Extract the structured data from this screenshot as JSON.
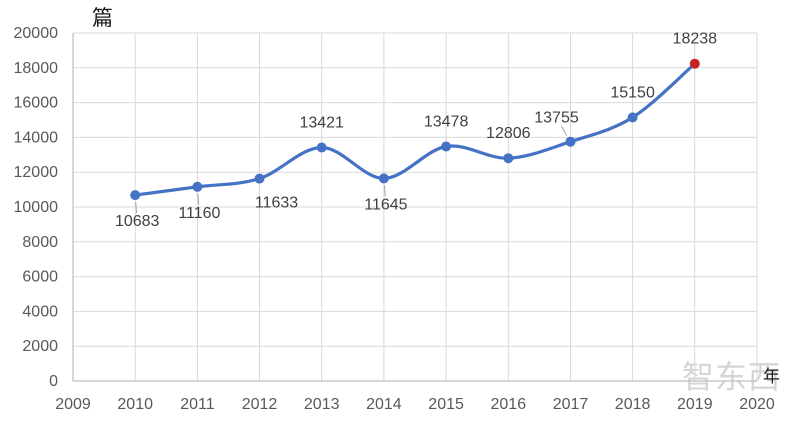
{
  "watermark": "智东西",
  "chart_data": {
    "type": "line",
    "title": "",
    "xlabel": "年",
    "ylabel": "篇",
    "x": [
      2010,
      2011,
      2012,
      2013,
      2014,
      2015,
      2016,
      2017,
      2018,
      2019
    ],
    "values": [
      10683,
      11160,
      11633,
      13421,
      11645,
      13478,
      12806,
      13755,
      15150,
      18238
    ],
    "x_ticks": [
      2009,
      2010,
      2011,
      2012,
      2013,
      2014,
      2015,
      2016,
      2017,
      2018,
      2019,
      2020
    ],
    "y_ticks": [
      0,
      2000,
      4000,
      6000,
      8000,
      10000,
      12000,
      14000,
      16000,
      18000,
      20000
    ],
    "xlim": [
      2009,
      2020
    ],
    "ylim": [
      0,
      20000
    ],
    "grid": true,
    "smooth": true,
    "legend": "none",
    "colors": {
      "line": "#4472C4",
      "marker": "#4472C4",
      "last_marker": "#C62222",
      "gridline": "#D9D9D9",
      "axis_line": "#BFBFBF",
      "tick_text": "#595959",
      "label_text": "#404040",
      "leader_line": "#A6A6A6"
    },
    "label_positions": [
      "below",
      "below",
      "below-right",
      "above",
      "below",
      "above",
      "above",
      "above-left",
      "above",
      "above"
    ],
    "label_leaders": [
      true,
      true,
      false,
      false,
      true,
      false,
      false,
      true,
      false,
      false
    ]
  }
}
